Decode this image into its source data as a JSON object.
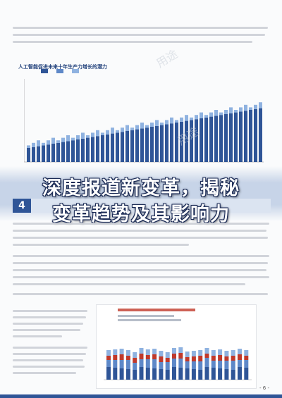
{
  "chart": {
    "title": "人工智能促进未来十年生产力增长的潜力"
  },
  "headline": {
    "line1": "深度报道新变革，揭秘",
    "line2": "变革趋势及其影响力"
  },
  "section": {
    "number": "4"
  },
  "footer": {
    "page": "- 6 -"
  },
  "colors": {
    "primary": "#2f5597",
    "bar_light": "#8fb2e0",
    "bar_mid": "#5e88c8",
    "bar_dark": "#2f5597",
    "accent_red": "#c0392b"
  }
}
